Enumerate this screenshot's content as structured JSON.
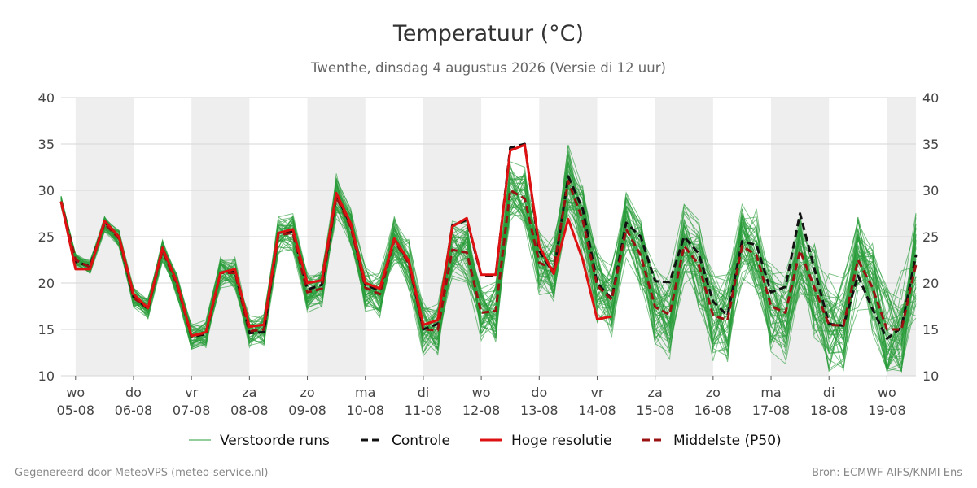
{
  "chart_data": {
    "type": "line",
    "title": "Temperatuur (°C)",
    "subtitle": "Twenthe, dinsdag  4 augustus 2026 (Versie di 12 uur)",
    "ylim": [
      10,
      40
    ],
    "yticks": [
      10,
      15,
      20,
      25,
      30,
      35,
      40
    ],
    "grid": true,
    "legend_placement": "bottom",
    "time_start": "2026-08-04 18:00",
    "time_end": "2026-08-19 12:00",
    "step_hours": 6,
    "x_ticks": [
      {
        "date": "2026-08-05",
        "day": "wo",
        "label": "05-08"
      },
      {
        "date": "2026-08-06",
        "day": "do",
        "label": "06-08"
      },
      {
        "date": "2026-08-07",
        "day": "vr",
        "label": "07-08"
      },
      {
        "date": "2026-08-08",
        "day": "za",
        "label": "08-08"
      },
      {
        "date": "2026-08-09",
        "day": "zo",
        "label": "09-08"
      },
      {
        "date": "2026-08-10",
        "day": "ma",
        "label": "10-08"
      },
      {
        "date": "2026-08-11",
        "day": "di",
        "label": "11-08"
      },
      {
        "date": "2026-08-12",
        "day": "wo",
        "label": "12-08"
      },
      {
        "date": "2026-08-13",
        "day": "do",
        "label": "13-08"
      },
      {
        "date": "2026-08-14",
        "day": "vr",
        "label": "14-08"
      },
      {
        "date": "2026-08-15",
        "day": "za",
        "label": "15-08"
      },
      {
        "date": "2026-08-16",
        "day": "zo",
        "label": "16-08"
      },
      {
        "date": "2026-08-17",
        "day": "ma",
        "label": "17-08"
      },
      {
        "date": "2026-08-18",
        "day": "di",
        "label": "18-08"
      },
      {
        "date": "2026-08-19",
        "day": "wo",
        "label": "19-08"
      }
    ],
    "shaded_bands": [
      [
        "2026-08-05 00:00",
        "2026-08-06 00:00"
      ],
      [
        "2026-08-07 00:00",
        "2026-08-08 00:00"
      ],
      [
        "2026-08-09 00:00",
        "2026-08-10 00:00"
      ],
      [
        "2026-08-11 00:00",
        "2026-08-12 00:00"
      ],
      [
        "2026-08-13 00:00",
        "2026-08-14 00:00"
      ],
      [
        "2026-08-15 00:00",
        "2026-08-16 00:00"
      ],
      [
        "2026-08-17 00:00",
        "2026-08-18 00:00"
      ],
      [
        "2026-08-19 00:00",
        "2026-08-19 12:00"
      ]
    ],
    "series": [
      {
        "name": "Controle",
        "color": "#111111",
        "style": "dashed",
        "values": [
          28.8,
          22.3,
          21.8,
          26.6,
          25.0,
          18.5,
          17.2,
          23.8,
          20.0,
          14.2,
          14.5,
          21.1,
          21.3,
          14.6,
          14.7,
          25.4,
          25.6,
          19.3,
          19.8,
          29.5,
          26.2,
          19.8,
          19.2,
          24.8,
          22.3,
          15.0,
          15.6,
          26.2,
          26.8,
          20.8,
          20.8,
          34.6,
          35.0,
          23.5,
          21.0,
          31.5,
          28.0,
          20.0,
          18.3,
          26.5,
          25.0,
          20.2,
          20.1,
          25.0,
          23.2,
          18.0,
          16.5,
          24.5,
          24.1,
          19.0,
          19.6,
          27.5,
          21.5,
          15.6,
          15.4,
          20.8,
          17.2,
          14.0,
          15.2,
          23.0
        ]
      },
      {
        "name": "Hoge resolutie",
        "color": "#dd1111",
        "style": "solid",
        "values": [
          28.8,
          21.5,
          21.5,
          26.7,
          25.0,
          18.8,
          17.3,
          23.8,
          20.1,
          14.3,
          14.7,
          21.1,
          21.5,
          15.3,
          15.5,
          25.4,
          25.8,
          20.0,
          20.3,
          29.7,
          26.4,
          20.0,
          19.4,
          24.8,
          22.4,
          15.5,
          16.0,
          26.1,
          27.0,
          20.9,
          20.9,
          34.3,
          34.9,
          24.0,
          21.0,
          26.9,
          22.5,
          16.1,
          16.4
        ]
      },
      {
        "name": "Middelste (P50)",
        "color": "#991111",
        "style": "dashed",
        "values": [
          28.8,
          22.5,
          21.7,
          26.4,
          24.8,
          18.4,
          17.3,
          23.5,
          19.8,
          14.3,
          14.6,
          21.1,
          21.1,
          14.8,
          15.0,
          25.2,
          25.4,
          19.0,
          19.4,
          29.3,
          26.0,
          19.5,
          18.8,
          24.6,
          22.1,
          15.0,
          14.9,
          23.6,
          23.3,
          16.8,
          17.0,
          30.0,
          29.1,
          22.2,
          21.5,
          31.0,
          26.8,
          19.7,
          18.2,
          25.8,
          23.0,
          17.4,
          16.6,
          24.0,
          22.0,
          16.5,
          16.0,
          24.0,
          23.0,
          17.5,
          16.8,
          23.5,
          19.5,
          15.5,
          15.4,
          22.5,
          19.5,
          15.0,
          15.0,
          22.0
        ]
      }
    ],
    "ensemble": {
      "name": "Verstoorde runs",
      "color": "#2a9d3a",
      "members": 50
    }
  },
  "legend": [
    {
      "label": "Verstoorde runs",
      "color": "#2a9d3a",
      "style": "thin"
    },
    {
      "label": "Controle",
      "color": "#111111",
      "style": "dashed"
    },
    {
      "label": "Hoge resolutie",
      "color": "#dd1111",
      "style": "solid"
    },
    {
      "label": "Middelste (P50)",
      "color": "#991111",
      "style": "dashed"
    }
  ],
  "footer": {
    "left": "Gegenereerd door MeteoVPS (meteo-service.nl)",
    "right": "Bron: ECMWF AIFS/KNMI Ens"
  }
}
